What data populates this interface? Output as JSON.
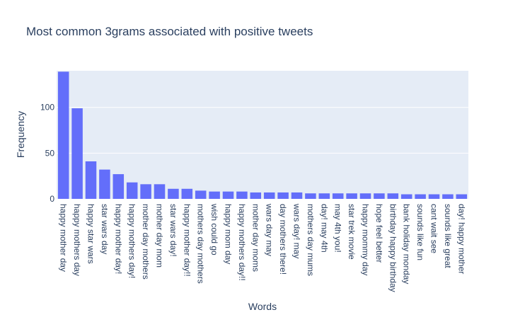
{
  "chart_data": {
    "type": "bar",
    "title": "Most common 3grams associated with positive tweets",
    "xlabel": "Words",
    "ylabel": "Frequency",
    "ylim": [
      0,
      140
    ],
    "yticks": [
      0,
      50,
      100
    ],
    "grid": true,
    "colors": {
      "bar": "#636efa",
      "plot_bg": "#e5ecf6",
      "text": "#2a3f5f",
      "grid": "#ffffff"
    },
    "categories": [
      "happy mother day",
      "happy mothers day",
      "happy star wars",
      "star wars day",
      "happy mother day!",
      "happy mothers day!",
      "mother day mothers",
      "mother day mom",
      "star wars day!",
      "happy mother day!!",
      "mothers day mothers",
      "wish could go",
      "happy mom day",
      "happy mothers day!!",
      "mother day moms",
      "wars day may",
      "day mothers there!",
      "wars day! may",
      "mothers day mums",
      "day! may 4th",
      "may 4th you!",
      "star trek movie",
      "happy mommy day",
      "hope feel better",
      "birthday happy birthday",
      "bank holiday monday",
      "sounds like fun",
      "cant wait see",
      "sounds like great",
      "day! happy mother"
    ],
    "values": [
      139,
      99,
      41,
      32,
      27,
      18,
      16,
      16,
      11,
      11,
      9,
      8,
      8,
      8,
      7,
      7,
      7,
      7,
      6,
      6,
      6,
      6,
      6,
      6,
      6,
      5,
      5,
      5,
      5,
      5
    ]
  }
}
